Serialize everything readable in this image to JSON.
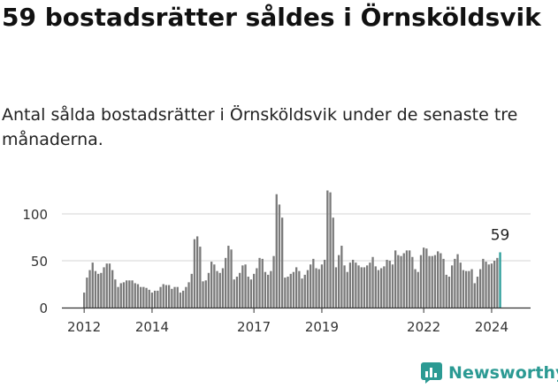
{
  "title": "59 bostadsrätter såldes i Örnsköldsvik",
  "subtitle": "Antal sålda bostadsrätter i Örnsköldsvik under de senaste tre månaderna.",
  "brand": {
    "name": "Newsworthy",
    "icon": "newsworthy-logo-icon",
    "color": "#2b9a93"
  },
  "colors": {
    "bar": "#7a7a7a",
    "highlight": "#2a9d99",
    "grid": "#d6d6d6",
    "axis": "#333333"
  },
  "chart_data": {
    "type": "bar",
    "title": "",
    "xlabel": "",
    "ylabel": "",
    "ylim": [
      0,
      125
    ],
    "yticks": [
      0,
      50,
      100
    ],
    "grid": true,
    "xticks": [
      "2012",
      "2014",
      "2017",
      "2019",
      "2022",
      "2024"
    ],
    "series": [
      {
        "values": [
          16,
          32,
          40,
          48,
          39,
          36,
          37,
          43,
          47,
          47,
          40,
          30,
          22,
          26,
          27,
          29,
          29,
          29,
          26,
          25,
          22,
          22,
          21,
          19,
          16,
          18,
          18,
          22,
          25,
          24,
          24,
          20,
          22,
          22,
          16,
          18,
          22,
          27,
          36,
          73,
          76,
          65,
          28,
          29,
          37,
          49,
          46,
          39,
          37,
          42,
          53,
          66,
          62,
          30,
          33,
          37,
          45,
          46,
          33,
          30,
          36,
          42,
          53,
          52,
          38,
          35,
          39,
          55,
          121,
          110,
          96,
          32,
          33,
          36,
          38,
          43,
          39,
          31,
          35,
          40,
          46,
          52,
          42,
          41,
          46,
          51,
          125,
          123,
          96,
          43,
          56,
          66,
          45,
          38,
          48,
          51,
          48,
          45,
          43,
          43,
          45,
          48,
          54,
          44,
          40,
          42,
          44,
          51,
          50,
          46,
          61,
          56,
          55,
          58,
          61,
          61,
          54,
          41,
          38,
          56,
          64,
          63,
          55,
          55,
          56,
          60,
          58,
          52,
          35,
          33,
          45,
          52,
          57,
          48,
          40,
          39,
          39,
          41,
          26,
          33,
          41,
          52,
          49,
          46,
          47,
          50,
          53,
          59
        ]
      }
    ],
    "highlight": {
      "index": 147,
      "label": "59"
    }
  }
}
